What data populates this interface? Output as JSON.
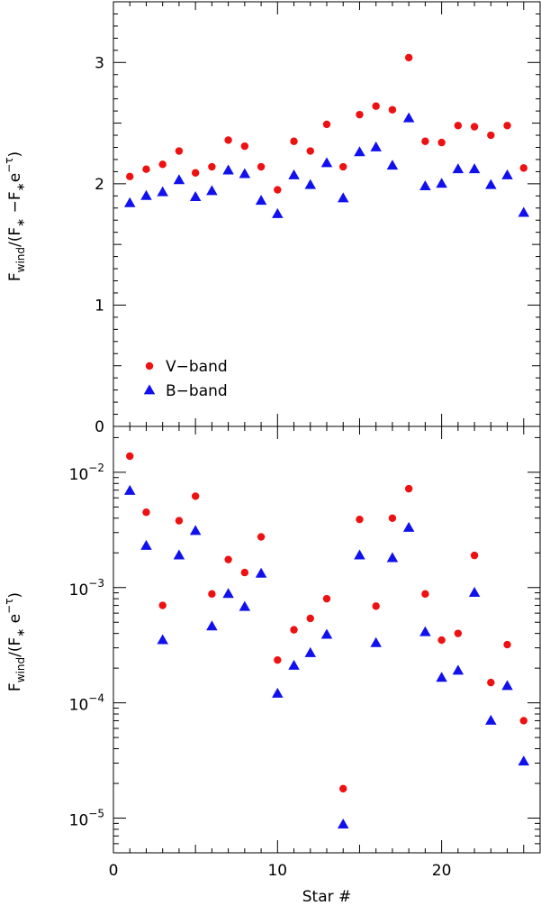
{
  "chart_data": [
    {
      "type": "scatter",
      "panel": "top",
      "ylabel_main": "F",
      "ylabel_sub": "wind",
      "ylabel_rest": "/(F",
      "ylabel_star": "∗",
      "ylabel_minus": " −F",
      "ylabel_star2": "∗",
      "ylabel_e": "e",
      "ylabel_tau": "−τ",
      "ylabel_close": ")",
      "ylim": [
        0,
        3.5
      ],
      "yticks": [
        0,
        1,
        2,
        3
      ],
      "ytick_labels": [
        "0",
        "1",
        "2",
        "3"
      ],
      "legend_position": "bottom-left",
      "series": [
        {
          "name": "V−band",
          "color": "#ee1111",
          "marker": "circle",
          "x": [
            1,
            2,
            3,
            4,
            5,
            6,
            7,
            8,
            9,
            10,
            11,
            12,
            13,
            14,
            15,
            16,
            17,
            18,
            19,
            20,
            21,
            22,
            23,
            24,
            25
          ],
          "y": [
            2.06,
            2.12,
            2.16,
            2.27,
            2.09,
            2.14,
            2.36,
            2.31,
            2.14,
            1.95,
            2.35,
            2.27,
            2.49,
            2.14,
            2.57,
            2.64,
            2.61,
            3.04,
            2.35,
            2.34,
            2.48,
            2.47,
            2.4,
            2.48,
            2.13
          ]
        },
        {
          "name": "B−band",
          "color": "#1111ee",
          "marker": "triangle",
          "x": [
            1,
            2,
            3,
            4,
            5,
            6,
            7,
            8,
            9,
            10,
            11,
            12,
            13,
            14,
            15,
            16,
            17,
            18,
            19,
            20,
            21,
            22,
            23,
            24,
            25
          ],
          "y": [
            1.84,
            1.9,
            1.93,
            2.03,
            1.89,
            1.94,
            2.11,
            2.08,
            1.86,
            1.75,
            2.07,
            1.99,
            2.17,
            1.88,
            2.26,
            2.3,
            2.15,
            2.54,
            1.98,
            2.0,
            2.12,
            2.12,
            1.99,
            2.07,
            1.76
          ]
        }
      ]
    },
    {
      "type": "scatter",
      "panel": "bottom",
      "ylog": true,
      "ylabel_main": "F",
      "ylabel_sub": "wind",
      "ylabel_rest": "/(F",
      "ylabel_star": "∗",
      "ylabel_e": " e",
      "ylabel_tau": "−τ",
      "ylabel_close": ")",
      "ylim": [
        5e-06,
        0.025
      ],
      "ytick_major": [
        1e-05,
        0.0001,
        0.001,
        0.01
      ],
      "ytick_base": [
        "10",
        "10",
        "10",
        "10"
      ],
      "ytick_exp": [
        "−5",
        "−4",
        "−3",
        "−2"
      ],
      "xlabel": "Star #",
      "xlim": [
        0,
        26
      ],
      "xticks": [
        0,
        10,
        20
      ],
      "xtick_labels": [
        "0",
        "10",
        "20"
      ],
      "series": [
        {
          "name": "V−band",
          "color": "#ee1111",
          "marker": "circle",
          "x": [
            1,
            2,
            3,
            4,
            5,
            6,
            7,
            8,
            9,
            10,
            11,
            12,
            13,
            14,
            15,
            16,
            17,
            18,
            19,
            20,
            21,
            22,
            23,
            24,
            25
          ],
          "y": [
            0.0138,
            0.0045,
            0.0007,
            0.0038,
            0.0062,
            0.00088,
            0.00175,
            0.00135,
            0.00275,
            0.000235,
            0.00043,
            0.00054,
            0.0008,
            1.8e-05,
            0.0039,
            0.00069,
            0.004,
            0.0072,
            0.00088,
            0.00035,
            0.0004,
            0.0019,
            0.00015,
            0.00032,
            7e-05
          ]
        },
        {
          "name": "B−band",
          "color": "#1111ee",
          "marker": "triangle",
          "x": [
            1,
            2,
            3,
            4,
            5,
            6,
            7,
            8,
            9,
            10,
            11,
            12,
            13,
            14,
            15,
            16,
            17,
            18,
            19,
            20,
            21,
            22,
            23,
            24,
            25
          ],
          "y": [
            0.0069,
            0.0023,
            0.00035,
            0.0019,
            0.0031,
            0.00046,
            0.00088,
            0.00068,
            0.00132,
            0.00012,
            0.00021,
            0.00027,
            0.00039,
            8.8e-06,
            0.0019,
            0.00033,
            0.0018,
            0.0033,
            0.00041,
            0.000165,
            0.00019,
            0.0009,
            7e-05,
            0.00014,
            3.1e-05
          ]
        }
      ]
    }
  ]
}
